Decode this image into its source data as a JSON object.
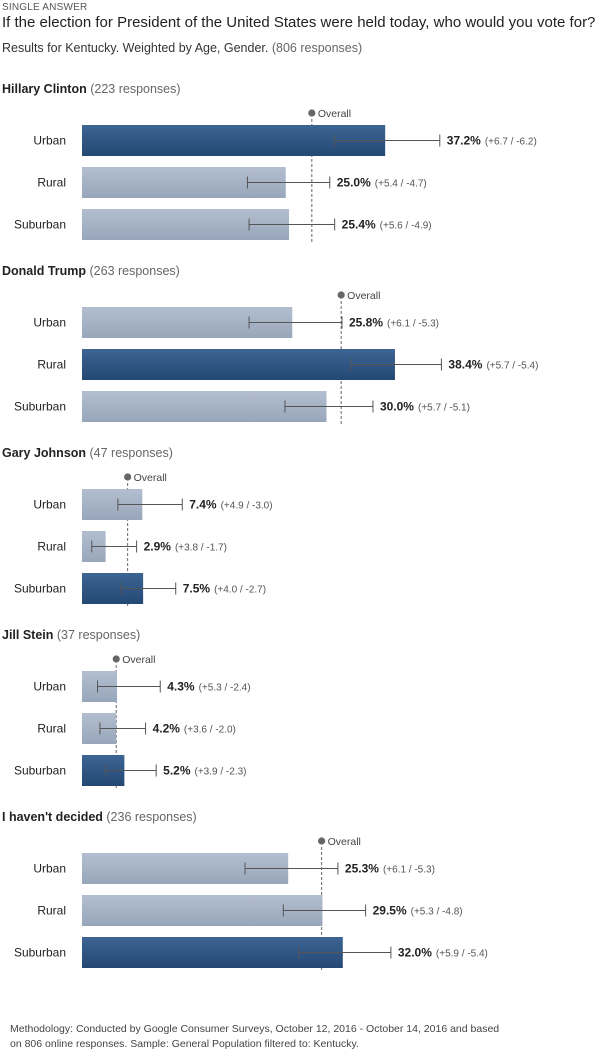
{
  "header": {
    "answer_type": "SINGLE ANSWER",
    "question": "If the election for President of the United States were held today, who would you vote for?",
    "subtitle": "Results for Kentucky. Weighted by Age, Gender.",
    "total_responses": "(806 responses)"
  },
  "overall_label": "Overall",
  "colors": {
    "highlight": "#2f5483",
    "normal": "#a5b2c5",
    "errorbar": "#555555",
    "overall": "#666666"
  },
  "chart_data": {
    "type": "bar",
    "orientation": "horizontal",
    "categories": [
      "Urban",
      "Rural",
      "Suburban"
    ],
    "groups": [
      {
        "name": "Hillary Clinton",
        "responses": "(223 responses)",
        "overall": 28.2,
        "highlight": 0,
        "values": [
          37.2,
          25.0,
          25.4
        ],
        "labels": [
          "37.2%",
          "25.0%",
          "25.4%"
        ],
        "err_text": [
          "(+6.7 / -6.2)",
          "(+5.4 / -4.7)",
          "(+5.6 / -4.9)"
        ],
        "err_plus": [
          6.7,
          5.4,
          5.6
        ],
        "err_minus": [
          6.2,
          4.7,
          4.9
        ]
      },
      {
        "name": "Donald Trump",
        "responses": "(263 responses)",
        "overall": 31.8,
        "highlight": 1,
        "values": [
          25.8,
          38.4,
          30.0
        ],
        "labels": [
          "25.8%",
          "38.4%",
          "30.0%"
        ],
        "err_text": [
          "(+6.1 / -5.3)",
          "(+5.7 / -5.4)",
          "(+5.7 / -5.1)"
        ],
        "err_plus": [
          6.1,
          5.7,
          5.7
        ],
        "err_minus": [
          5.3,
          5.4,
          5.1
        ]
      },
      {
        "name": "Gary Johnson",
        "responses": "(47 responses)",
        "overall": 5.6,
        "highlight": 2,
        "values": [
          7.4,
          2.9,
          7.5
        ],
        "labels": [
          "7.4%",
          "2.9%",
          "7.5%"
        ],
        "err_text": [
          "(+4.9 / -3.0)",
          "(+3.8 / -1.7)",
          "(+4.0 / -2.7)"
        ],
        "err_plus": [
          4.9,
          3.8,
          4.0
        ],
        "err_minus": [
          3.0,
          1.7,
          2.7
        ]
      },
      {
        "name": "Jill Stein",
        "responses": "(37 responses)",
        "overall": 4.2,
        "highlight": 2,
        "values": [
          4.3,
          4.2,
          5.2
        ],
        "labels": [
          "4.3%",
          "4.2%",
          "5.2%"
        ],
        "err_text": [
          "(+5.3 / -2.4)",
          "(+3.6 / -2.0)",
          "(+3.9 / -2.3)"
        ],
        "err_plus": [
          5.3,
          3.6,
          3.9
        ],
        "err_minus": [
          2.4,
          2.0,
          2.3
        ]
      },
      {
        "name": "I haven't decided",
        "responses": "(236 responses)",
        "overall": 29.4,
        "highlight": 2,
        "values": [
          25.3,
          29.5,
          32.0
        ],
        "labels": [
          "25.3%",
          "29.5%",
          "32.0%"
        ],
        "err_text": [
          "(+6.1 / -5.3)",
          "(+5.3 / -4.8)",
          "(+5.9 / -5.4)"
        ],
        "err_plus": [
          6.1,
          5.3,
          5.9
        ],
        "err_minus": [
          5.3,
          4.8,
          5.4
        ]
      }
    ]
  },
  "methodology": "Methodology: Conducted by Google Consumer Surveys, October 12, 2016 - October 14, 2016 and based on 806 online responses. Sample: General Population filtered to: Kentucky."
}
